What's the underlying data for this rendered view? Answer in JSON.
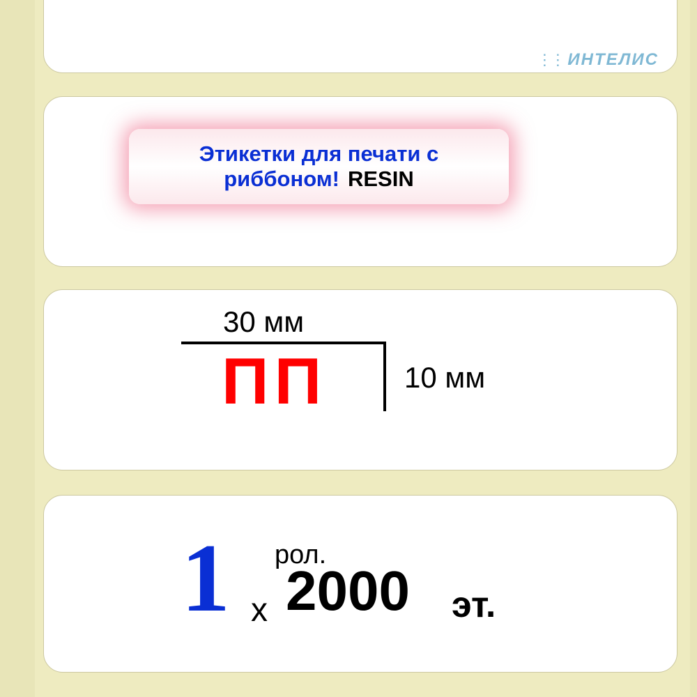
{
  "brand": {
    "name": "ИНТЕЛИС",
    "color": "#7fb8d4"
  },
  "callout": {
    "line1": "Этикетки для печати с",
    "line2_part1": "риббоном!",
    "line2_part2": "RESIN",
    "text_color": "#0a2fd4",
    "resin_color": "#000000",
    "glow_color": "#ec486d",
    "bg_gradient_top": "#fce8ec",
    "bg_gradient_mid": "#ffffff"
  },
  "dimensions": {
    "width_label": "30 мм",
    "height_label": "10 мм",
    "material_code": "ПП",
    "material_color": "#ff0000",
    "line_color": "#000000"
  },
  "quantity": {
    "rolls": "1",
    "rolls_label": "рол.",
    "separator": "x",
    "count": "2000",
    "unit": "эт.",
    "rolls_color": "#0a2fd4"
  },
  "layout": {
    "canvas_bg": "#e8e5b8",
    "strip_bg": "#eeebc0",
    "label_bg": "#ffffff",
    "label_border": "#ccc8a0",
    "label_radius": 28
  }
}
